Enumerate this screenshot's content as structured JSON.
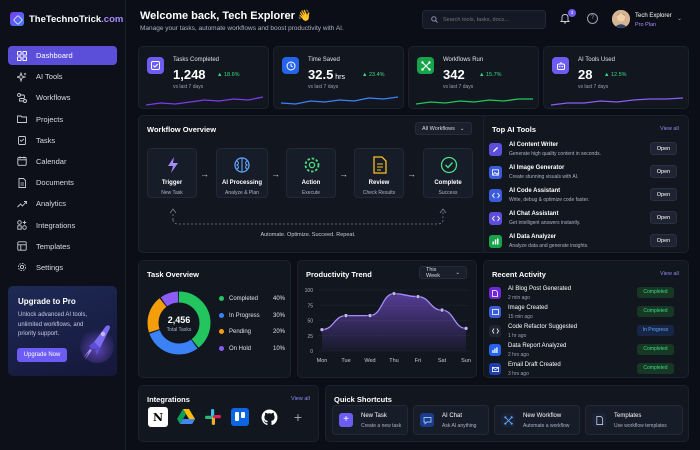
{
  "brand": {
    "name_part1": "TheTechnoTrick",
    "name_part2": ".com"
  },
  "nav": {
    "items": [
      {
        "label": "Dashboard",
        "icon": "grid-icon",
        "active": true
      },
      {
        "label": "AI Tools",
        "icon": "sparkles-icon"
      },
      {
        "label": "Workflows",
        "icon": "workflow-icon"
      },
      {
        "label": "Projects",
        "icon": "folder-icon"
      },
      {
        "label": "Tasks",
        "icon": "clipboard-icon"
      },
      {
        "label": "Calendar",
        "icon": "calendar-icon"
      },
      {
        "label": "Documents",
        "icon": "document-icon"
      },
      {
        "label": "Analytics",
        "icon": "analytics-icon"
      },
      {
        "label": "Integrations",
        "icon": "integrations-icon"
      },
      {
        "label": "Templates",
        "icon": "template-icon"
      },
      {
        "label": "Settings",
        "icon": "gear-icon"
      }
    ]
  },
  "upgrade": {
    "title": "Upgrade to Pro",
    "text": "Unlock advanced AI tools, unlimited workflows, and priority support.",
    "button": "Upgrade Now"
  },
  "header": {
    "welcome": "Welcome back, Tech Explorer 👋",
    "subtitle": "Manage your tasks, automate workflows and boost productivity with AI.",
    "search_placeholder": "Search tools, tasks, docs...",
    "notif_count": "3",
    "user_name": "Tech Explorer",
    "user_role": "Pro Plan"
  },
  "stats": [
    {
      "label": "Tasks Completed",
      "value": "1,248",
      "unit": "",
      "change": "▲ 18.6%",
      "vs": "vs last 7 days",
      "color": "#7c3aed",
      "spark": [
        14,
        12,
        13,
        11,
        9,
        10,
        8,
        9,
        6
      ]
    },
    {
      "label": "Time Saved",
      "value": "32.5",
      "unit": " hrs",
      "change": "▲ 23.4%",
      "vs": "vs last 7 days",
      "color": "#3b82f6",
      "spark": [
        12,
        13,
        10,
        11,
        9,
        10,
        7,
        8,
        6
      ]
    },
    {
      "label": "Workflows Run",
      "value": "342",
      "unit": "",
      "change": "▲ 15.7%",
      "vs": "vs last 7 days",
      "color": "#22c55e",
      "spark": [
        13,
        11,
        12,
        10,
        11,
        9,
        10,
        8,
        8
      ]
    },
    {
      "label": "AI Tools Used",
      "value": "28",
      "unit": "",
      "change": "▲ 12.5%",
      "vs": "vs last 7 days",
      "color": "#8b5cf6",
      "spark": [
        14,
        12,
        12,
        10,
        11,
        9,
        8,
        8,
        7
      ]
    }
  ],
  "workflow": {
    "title": "Workflow Overview",
    "filter": "All Workflows",
    "nodes": [
      {
        "title": "Trigger",
        "sub": "New Task",
        "icon": "lightning-icon",
        "color": "#a78bfa"
      },
      {
        "title": "AI Processing",
        "sub": "Analyze & Plan",
        "icon": "brain-icon",
        "color": "#60a5fa"
      },
      {
        "title": "Action",
        "sub": "Execute",
        "icon": "gear-icon",
        "color": "#4ade80"
      },
      {
        "title": "Review",
        "sub": "Check Results",
        "icon": "document-icon",
        "color": "#fbbf24"
      },
      {
        "title": "Complete",
        "sub": "Success",
        "icon": "check-circle-icon",
        "color": "#4ade80"
      }
    ],
    "footer": "Automate. Optimize. Succeed. Repeat."
  },
  "top_tools": {
    "title": "Top AI Tools",
    "view_all": "View all",
    "items": [
      {
        "name": "AI Content Writer",
        "desc": "Generate high quality content in seconds.",
        "button": "Open",
        "icon": "pen-icon"
      },
      {
        "name": "AI Image Generator",
        "desc": "Create stunning visuals with AI.",
        "button": "Open",
        "icon": "image-icon"
      },
      {
        "name": "AI Code Assistant",
        "desc": "Write, debug & optimize code faster.",
        "button": "Open",
        "icon": "code-icon"
      },
      {
        "name": "AI Chat Assistant",
        "desc": "Get intelligent answers instantly.",
        "button": "Open",
        "icon": "chat-icon"
      },
      {
        "name": "AI Data Analyzer",
        "desc": "Analyze data and generate insights.",
        "button": "Open",
        "icon": "bar-chart-icon"
      }
    ]
  },
  "task_overview": {
    "title": "Task Overview",
    "total": "2,456",
    "total_label": "Total Tasks",
    "items": [
      {
        "label": "Completed",
        "pct": "40%",
        "value": 40,
        "color": "#22c55e"
      },
      {
        "label": "In Progress",
        "pct": "30%",
        "value": 30,
        "color": "#3b82f6"
      },
      {
        "label": "Pending",
        "pct": "20%",
        "value": 20,
        "color": "#f59e0b"
      },
      {
        "label": "On Hold",
        "pct": "10%",
        "value": 10,
        "color": "#8b5cf6"
      }
    ]
  },
  "chart_data": {
    "type": "area",
    "title": "Productivity Trend",
    "filter": "This Week",
    "categories": [
      "Mon",
      "Tue",
      "Wed",
      "Thu",
      "Fri",
      "Sat",
      "Sun"
    ],
    "values": [
      35,
      58,
      58,
      94,
      89,
      67,
      37
    ],
    "yticks": [
      "100",
      "75",
      "50",
      "25",
      "0"
    ],
    "ylim": [
      0,
      100
    ],
    "color": "#8b5cf6"
  },
  "activity": {
    "title": "Recent Activity",
    "view_all": "View all",
    "items": [
      {
        "name": "AI Blog Post Generated",
        "time": "2 min ago",
        "status": "Completed",
        "kind": "done",
        "icon": "document-icon"
      },
      {
        "name": "Image Created",
        "time": "15 min ago",
        "status": "Completed",
        "kind": "done",
        "icon": "image-icon"
      },
      {
        "name": "Code Refactor Suggested",
        "time": "1 hr ago",
        "status": "In Progress",
        "kind": "prog",
        "icon": "code-icon"
      },
      {
        "name": "Data Report Analyzed",
        "time": "2 hrs ago",
        "status": "Completed",
        "kind": "done",
        "icon": "bar-chart-icon"
      },
      {
        "name": "Email Draft Created",
        "time": "3 hrs ago",
        "status": "Completed",
        "kind": "done",
        "icon": "mail-icon"
      }
    ]
  },
  "integrations": {
    "title": "Integrations",
    "view_all": "View all",
    "items": [
      "notion-icon",
      "google-drive-icon",
      "slack-icon",
      "trello-icon",
      "github-icon",
      "plus-icon"
    ]
  },
  "shortcuts": {
    "title": "Quick Shortcuts",
    "items": [
      {
        "title": "New Task",
        "sub": "Create a new task",
        "icon": "plus-icon",
        "color": "#6d5cf3"
      },
      {
        "title": "AI Chat",
        "sub": "Ask AI anything",
        "icon": "chat-icon",
        "color": "#1e3a8a"
      },
      {
        "title": "New Workflow",
        "sub": "Automate a workflow",
        "icon": "workflow-icon",
        "color": "#1a2238"
      },
      {
        "title": "Templates",
        "sub": "Use workflow templates",
        "icon": "template-icon",
        "color": "#1a2238"
      }
    ]
  }
}
